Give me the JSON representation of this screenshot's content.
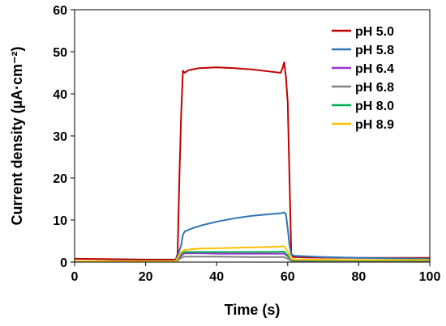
{
  "chart_data": {
    "type": "line",
    "xlabel": "Time (s)",
    "ylabel": "Current density (µA·cm⁻²)",
    "xlim": [
      0,
      100
    ],
    "ylim": [
      0,
      60
    ],
    "x_ticks": [
      "0",
      "20",
      "40",
      "60",
      "80",
      "100"
    ],
    "y_ticks": [
      "0",
      "10",
      "20",
      "30",
      "40",
      "50",
      "60"
    ],
    "grid": false,
    "legend_position": "top-right",
    "series": [
      {
        "name": "pH 5.0",
        "color": "#c00000",
        "points": [
          [
            0,
            0.8
          ],
          [
            10,
            0.7
          ],
          [
            20,
            0.6
          ],
          [
            28.5,
            0.6
          ],
          [
            29,
            2
          ],
          [
            29.5,
            20
          ],
          [
            30,
            35
          ],
          [
            30.5,
            45.5
          ],
          [
            31,
            45
          ],
          [
            32,
            45.6
          ],
          [
            35,
            46.1
          ],
          [
            40,
            46.3
          ],
          [
            45,
            46.1
          ],
          [
            50,
            45.8
          ],
          [
            55,
            45.3
          ],
          [
            58,
            45
          ],
          [
            58.5,
            46
          ],
          [
            59,
            47.5
          ],
          [
            59.5,
            44
          ],
          [
            60,
            38
          ],
          [
            60.5,
            20
          ],
          [
            61,
            2
          ],
          [
            61.5,
            1.2
          ],
          [
            65,
            1.1
          ],
          [
            80,
            1
          ],
          [
            100,
            1
          ]
        ]
      },
      {
        "name": "pH 5.8",
        "color": "#2e75b6",
        "points": [
          [
            0,
            0.2
          ],
          [
            20,
            0.3
          ],
          [
            28.5,
            0.3
          ],
          [
            29,
            1.5
          ],
          [
            30,
            4
          ],
          [
            30.5,
            6.5
          ],
          [
            31,
            7.3
          ],
          [
            33,
            8
          ],
          [
            36,
            8.8
          ],
          [
            40,
            9.6
          ],
          [
            45,
            10.4
          ],
          [
            50,
            11
          ],
          [
            55,
            11.4
          ],
          [
            58,
            11.6
          ],
          [
            59,
            11.8
          ],
          [
            59.5,
            11.4
          ],
          [
            60,
            8
          ],
          [
            60.5,
            4
          ],
          [
            61,
            1.8
          ],
          [
            62,
            1.5
          ],
          [
            70,
            1.2
          ],
          [
            80,
            1
          ],
          [
            100,
            0.8
          ]
        ]
      },
      {
        "name": "pH 6.4",
        "color": "#9933cc",
        "points": [
          [
            0,
            0.1
          ],
          [
            28.5,
            0.1
          ],
          [
            29,
            0.5
          ],
          [
            30,
            1.5
          ],
          [
            31,
            2.1
          ],
          [
            35,
            2.1
          ],
          [
            40,
            2
          ],
          [
            45,
            2
          ],
          [
            50,
            2
          ],
          [
            55,
            2
          ],
          [
            59,
            2
          ],
          [
            60,
            1.4
          ],
          [
            61,
            0.5
          ],
          [
            62,
            0.4
          ],
          [
            80,
            0.3
          ],
          [
            100,
            0.3
          ]
        ]
      },
      {
        "name": "pH 6.8",
        "color": "#808080",
        "points": [
          [
            0,
            0.1
          ],
          [
            28.5,
            0.1
          ],
          [
            29,
            0.4
          ],
          [
            30,
            1
          ],
          [
            31,
            1.3
          ],
          [
            40,
            1.3
          ],
          [
            50,
            1.2
          ],
          [
            58,
            1.2
          ],
          [
            59,
            1.2
          ],
          [
            60,
            0.8
          ],
          [
            61,
            0.3
          ],
          [
            62,
            0.2
          ],
          [
            100,
            0.2
          ]
        ]
      },
      {
        "name": "pH 8.0",
        "color": "#00b050",
        "points": [
          [
            0,
            0.1
          ],
          [
            28.5,
            0.1
          ],
          [
            29,
            0.8
          ],
          [
            30,
            2
          ],
          [
            31,
            2.4
          ],
          [
            35,
            2.4
          ],
          [
            40,
            2.4
          ],
          [
            45,
            2.4
          ],
          [
            50,
            2.4
          ],
          [
            55,
            2.4
          ],
          [
            59,
            2.5
          ],
          [
            60,
            1.6
          ],
          [
            61,
            0.6
          ],
          [
            62,
            0.5
          ],
          [
            80,
            0.4
          ],
          [
            100,
            0.4
          ]
        ]
      },
      {
        "name": "pH 8.9",
        "color": "#ffc000",
        "points": [
          [
            0,
            0.2
          ],
          [
            28.5,
            0.2
          ],
          [
            29,
            1
          ],
          [
            30,
            2.4
          ],
          [
            31,
            2.9
          ],
          [
            35,
            3.2
          ],
          [
            40,
            3.3
          ],
          [
            45,
            3.4
          ],
          [
            50,
            3.5
          ],
          [
            55,
            3.6
          ],
          [
            58,
            3.7
          ],
          [
            59,
            3.8
          ],
          [
            60,
            2.5
          ],
          [
            61,
            0.8
          ],
          [
            62,
            0.6
          ],
          [
            80,
            0.5
          ],
          [
            100,
            0.5
          ]
        ]
      }
    ]
  }
}
